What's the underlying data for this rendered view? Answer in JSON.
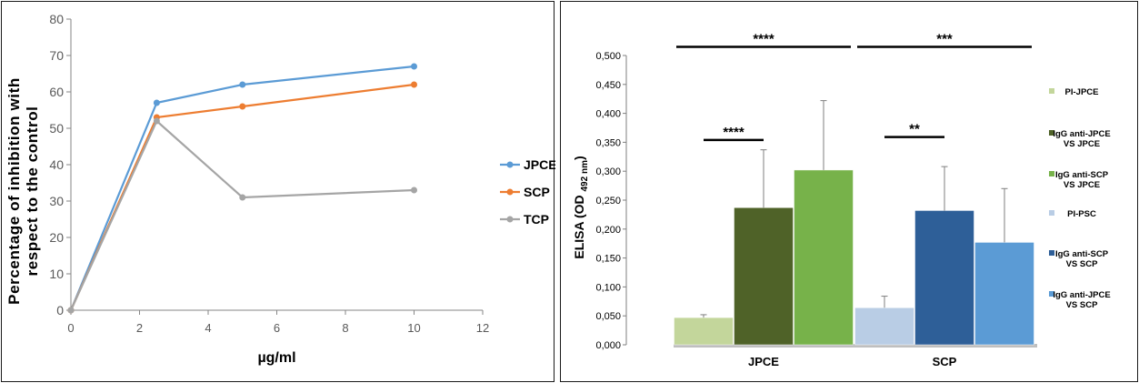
{
  "charts": [
    {
      "chart_data": {
        "type": "line",
        "title": "",
        "xlabel": "µg/ml",
        "ylabel_lines": [
          "Percentage  of inhibition with",
          "respect to the control"
        ],
        "xlim": [
          0,
          12
        ],
        "ylim": [
          0,
          80
        ],
        "xticks": [
          "0",
          "2",
          "4",
          "6",
          "8",
          "10",
          "12"
        ],
        "yticks": [
          "0",
          "10",
          "20",
          "30",
          "40",
          "50",
          "60",
          "70",
          "80"
        ],
        "grid": false,
        "legend_position": "right",
        "series": [
          {
            "name": "JPCE",
            "color": "#5b9bd5",
            "x": [
              0,
              2.5,
              5,
              10
            ],
            "y": [
              0,
              57,
              62,
              67
            ]
          },
          {
            "name": "SCP",
            "color": "#ed7d31",
            "x": [
              0,
              2.5,
              5,
              10
            ],
            "y": [
              0,
              53,
              56,
              62
            ]
          },
          {
            "name": "TCP",
            "color": "#a5a5a5",
            "x": [
              0,
              2.5,
              5,
              10
            ],
            "y": [
              0,
              52,
              31,
              33
            ]
          }
        ]
      }
    },
    {
      "chart_data": {
        "type": "bar",
        "title": "",
        "xlabel": "",
        "ylabel_main": "ELISA (OD",
        "ylabel_sub": "492 nm",
        "ylabel_close": ")",
        "ylim": [
          0,
          0.5
        ],
        "yticks": [
          "0,000",
          "0,050",
          "0,100",
          "0,150",
          "0,200",
          "0,250",
          "0,300",
          "0,350",
          "0,400",
          "0,450",
          "0,500"
        ],
        "grid": false,
        "legend_position": "right",
        "groups": [
          {
            "label": "JPCE",
            "bars": [
              {
                "legend": [
                  "PI-JPCE"
                ],
                "value": 0.047,
                "error": 0.005,
                "color": "#c3d69b"
              },
              {
                "legend": [
                  "IgG anti-JPCE",
                  "VS JPCE"
                ],
                "value": 0.237,
                "error": 0.1,
                "color": "#4f6228"
              },
              {
                "legend": [
                  "IgG anti-SCP",
                  "VS JPCE"
                ],
                "value": 0.302,
                "error": 0.12,
                "color": "#77b24a"
              }
            ]
          },
          {
            "label": "SCP",
            "bars": [
              {
                "legend": [
                  "PI-PSC"
                ],
                "value": 0.064,
                "error": 0.02,
                "color": "#b9cde5"
              },
              {
                "legend": [
                  "IgG anti-SCP",
                  "VS SCP"
                ],
                "value": 0.232,
                "error": 0.076,
                "color": "#2e5f98"
              },
              {
                "legend": [
                  "IgG anti-JPCE",
                  "VS SCP"
                ],
                "value": 0.177,
                "error": 0.093,
                "color": "#5b9bd5"
              }
            ]
          }
        ],
        "significance": [
          {
            "text": "****",
            "group": 0,
            "from_bar": 0,
            "to_bar": 2,
            "y": 0.515
          },
          {
            "text": "***",
            "group": 1,
            "from_bar": 0,
            "to_bar": 2,
            "y": 0.515
          },
          {
            "text": "****",
            "group": 0,
            "from_bar": 0,
            "to_bar": 1,
            "y": 0.354
          },
          {
            "text": "**",
            "group": 1,
            "from_bar": 0,
            "to_bar": 1,
            "y": 0.359
          }
        ]
      }
    }
  ]
}
